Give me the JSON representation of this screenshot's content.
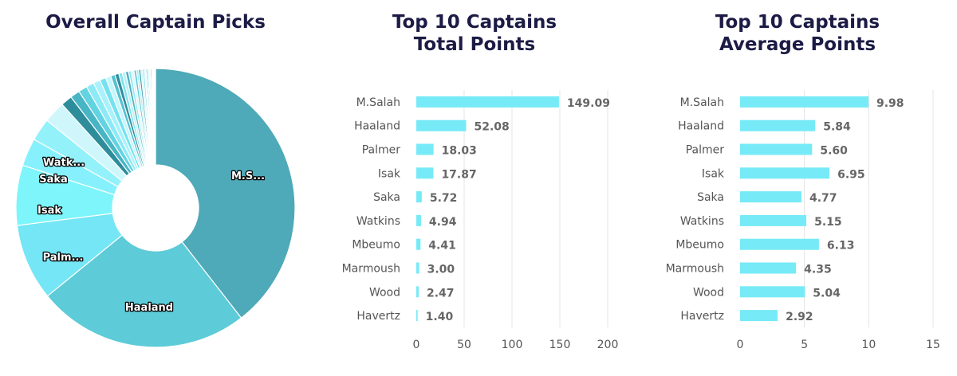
{
  "colors": {
    "title": "#1b1b45",
    "bar": "#77eaf7",
    "grid": "#e4e4e4",
    "pie_label_fill": "#ffffff",
    "pie_label_stroke": "#000000"
  },
  "chart_data": [
    {
      "type": "pie",
      "title": "Overall Captain Picks",
      "donut": true,
      "start_angle_deg": 0,
      "direction": "clockwise",
      "labeled_slices": [
        "M.S...",
        "Haaland",
        "Palm...",
        "Isak",
        "Saka",
        "Watk..."
      ],
      "slices": [
        {
          "label": "M.S...",
          "value": 39.1,
          "color": "#4ea9b8"
        },
        {
          "label": "Haaland",
          "value": 24.4,
          "color": "#5dcbd8"
        },
        {
          "label": "Palm...",
          "value": 8.8,
          "color": "#74e6f5"
        },
        {
          "label": "Isak",
          "value": 6.9,
          "color": "#7df5fa"
        },
        {
          "label": "Saka",
          "value": 3.2,
          "color": "#86f1fc"
        },
        {
          "label": "Watk...",
          "value": 2.6,
          "color": "#93f1fa"
        },
        {
          "label": "",
          "value": 2.5,
          "color": "#cff6fb"
        },
        {
          "label": "",
          "value": 1.3,
          "color": "#2e8d9b"
        },
        {
          "label": "",
          "value": 1.1,
          "color": "#48b5c5"
        },
        {
          "label": "",
          "value": 1.0,
          "color": "#62d3e0"
        },
        {
          "label": "",
          "value": 0.9,
          "color": "#8ceaf6"
        },
        {
          "label": "",
          "value": 0.8,
          "color": "#a9f2fb"
        },
        {
          "label": "",
          "value": 0.7,
          "color": "#74e2f0"
        },
        {
          "label": "",
          "value": 0.6,
          "color": "#c4f6fc"
        },
        {
          "label": "",
          "value": 0.5,
          "color": "#54c1cf"
        },
        {
          "label": "",
          "value": 0.45,
          "color": "#2f8f9d"
        },
        {
          "label": "",
          "value": 0.4,
          "color": "#80e4f0"
        },
        {
          "label": "",
          "value": 0.38,
          "color": "#b5f1f8"
        },
        {
          "label": "",
          "value": 0.35,
          "color": "#4fb0bd"
        },
        {
          "label": "",
          "value": 0.32,
          "color": "#92e9f4"
        },
        {
          "label": "",
          "value": 0.3,
          "color": "#d5f8fc"
        },
        {
          "label": "",
          "value": 0.28,
          "color": "#62c6d2"
        },
        {
          "label": "",
          "value": 0.26,
          "color": "#a3eef7"
        },
        {
          "label": "",
          "value": 0.24,
          "color": "#3d9dab"
        },
        {
          "label": "",
          "value": 0.22,
          "color": "#c1f4fa"
        },
        {
          "label": "",
          "value": 0.2,
          "color": "#70dbe7"
        },
        {
          "label": "",
          "value": 0.18,
          "color": "#e2fbfe"
        },
        {
          "label": "",
          "value": 0.17,
          "color": "#5bbecb"
        },
        {
          "label": "",
          "value": 0.16,
          "color": "#9debf5"
        },
        {
          "label": "",
          "value": 0.15,
          "color": "#d0f7fb"
        },
        {
          "label": "",
          "value": 0.14,
          "color": "#47a7b5"
        },
        {
          "label": "",
          "value": 0.13,
          "color": "#b8f2f9"
        },
        {
          "label": "",
          "value": 0.12,
          "color": "#e8fcfe"
        },
        {
          "label": "",
          "value": 0.11,
          "color": "#84e3ee"
        },
        {
          "label": "",
          "value": 0.1,
          "color": "#f0fdfe"
        }
      ]
    },
    {
      "type": "bar",
      "orientation": "horizontal",
      "title": "Top 10 Captains Total Points",
      "categories": [
        "M.Salah",
        "Haaland",
        "Palmer",
        "Isak",
        "Saka",
        "Watkins",
        "Mbeumo",
        "Marmoush",
        "Wood",
        "Havertz"
      ],
      "values": [
        149.09,
        52.08,
        18.03,
        17.87,
        5.72,
        4.94,
        4.41,
        3.0,
        2.47,
        1.4
      ],
      "value_labels": [
        "149.09",
        "52.08",
        "18.03",
        "17.87",
        "5.72",
        "4.94",
        "4.41",
        "3.00",
        "2.47",
        "1.40"
      ],
      "xlim": [
        0,
        200
      ],
      "xticks": [
        "0",
        "50",
        "100",
        "150",
        "200"
      ],
      "grid": true
    },
    {
      "type": "bar",
      "orientation": "horizontal",
      "title": "Top 10 Captains Average Points",
      "categories": [
        "M.Salah",
        "Haaland",
        "Palmer",
        "Isak",
        "Saka",
        "Watkins",
        "Mbeumo",
        "Marmoush",
        "Wood",
        "Havertz"
      ],
      "values": [
        9.98,
        5.84,
        5.6,
        6.95,
        4.77,
        5.15,
        6.13,
        4.35,
        5.04,
        2.92
      ],
      "value_labels": [
        "9.98",
        "5.84",
        "5.60",
        "6.95",
        "4.77",
        "5.15",
        "6.13",
        "4.35",
        "5.04",
        "2.92"
      ],
      "xlim": [
        0,
        15
      ],
      "xticks": [
        "0",
        "5",
        "10",
        "15"
      ],
      "grid": true
    }
  ]
}
